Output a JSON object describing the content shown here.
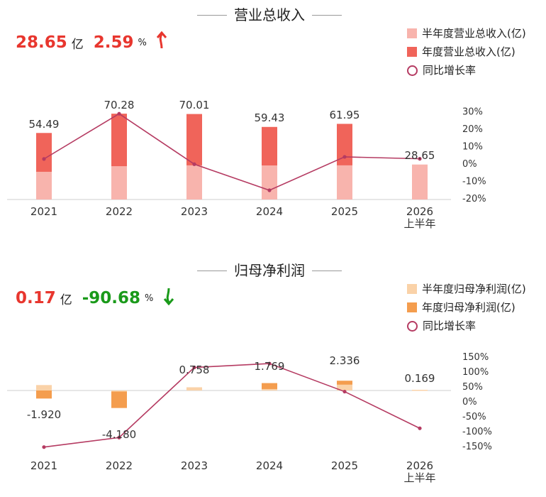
{
  "revenue": {
    "title": "营业总收入",
    "headline": {
      "value": "28.65",
      "unit": "亿",
      "pct": "2.59",
      "pct_unit": "%",
      "direction": "up"
    },
    "legend": [
      {
        "label": "半年度营业总收入(亿)",
        "color": "#f8b4ad"
      },
      {
        "label": "年度营业总收入(亿)",
        "color": "#f0645a"
      },
      {
        "label": "同比增长率",
        "color": "#b53b62"
      }
    ]
  },
  "profit": {
    "title": "归母净利润",
    "headline": {
      "value": "0.17",
      "unit": "亿",
      "pct": "-90.68",
      "pct_unit": "%",
      "direction": "down"
    },
    "legend": [
      {
        "label": "半年度归母净利润(亿)",
        "color": "#fad2a8"
      },
      {
        "label": "年度归母净利润(亿)",
        "color": "#f49d4e"
      },
      {
        "label": "同比增长率",
        "color": "#b53b62"
      }
    ]
  },
  "chart_data": [
    {
      "type": "bar",
      "title": "营业总收入",
      "categories": [
        "2021",
        "2022",
        "2023",
        "2024",
        "2025",
        "2026"
      ],
      "category_sublabels": [
        "",
        "",
        "",
        "",
        "",
        "上半年"
      ],
      "series": [
        {
          "name": "半年度营业总收入(亿)",
          "values": [
            22.7,
            27.3,
            28.0,
            27.9,
            28.0,
            28.65
          ]
        },
        {
          "name": "年度营业总收入(亿)",
          "values": [
            54.49,
            70.28,
            70.01,
            59.43,
            61.95,
            null
          ]
        },
        {
          "name": "同比增长率",
          "type": "line",
          "axis": "right",
          "values": [
            2.5,
            28.5,
            -0.5,
            -15.5,
            3.7,
            2.6
          ]
        }
      ],
      "bar_labels": [
        "54.49",
        "70.28",
        "70.01",
        "59.43",
        "61.95",
        "28.65"
      ],
      "right_axis": {
        "ticks": [
          "30%",
          "20%",
          "10%",
          "0%",
          "-10%",
          "-20%"
        ],
        "range": [
          -20,
          30
        ]
      },
      "ylim": [
        0,
        75
      ],
      "legend_position": "top-right"
    },
    {
      "type": "bar",
      "title": "归母净利润",
      "categories": [
        "2021",
        "2022",
        "2023",
        "2024",
        "2025",
        "2026"
      ],
      "category_sublabels": [
        "",
        "",
        "",
        "",
        "",
        "上半年"
      ],
      "series": [
        {
          "name": "半年度归母净利润(亿)",
          "values": [
            1.3,
            -0.25,
            0.758,
            0.35,
            1.4,
            0.169
          ]
        },
        {
          "name": "年度归母净利润(亿)",
          "values": [
            -1.92,
            -4.18,
            0.758,
            1.769,
            2.336,
            null
          ]
        },
        {
          "name": "同比增长率",
          "type": "line",
          "axis": "right",
          "values": [
            -154,
            -122,
            113,
            126,
            32,
            -91
          ]
        }
      ],
      "bar_labels": [
        "-1.920",
        "-4.180",
        "0.758",
        "1.769",
        "2.336",
        "0.169"
      ],
      "right_axis": {
        "ticks": [
          "150%",
          "100%",
          "50%",
          "0%",
          "-50%",
          "-100%",
          "-150%"
        ],
        "range": [
          -150,
          150
        ]
      },
      "ylim": [
        -4.5,
        4
      ],
      "legend_position": "top-right"
    }
  ]
}
